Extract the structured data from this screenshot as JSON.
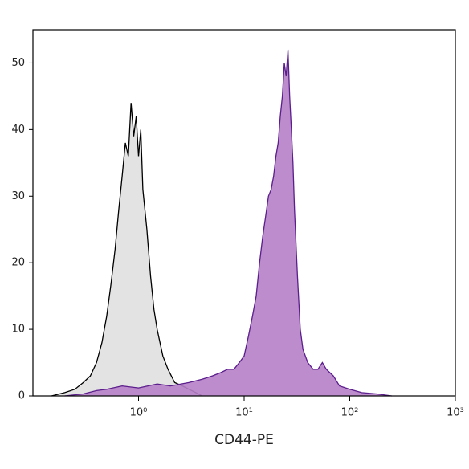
{
  "chart_data": {
    "type": "area",
    "x_label": "CD44-PE",
    "xscale": "log",
    "xlim": [
      0.1,
      1000
    ],
    "xticks": [
      {
        "value": 1,
        "label": "10⁰"
      },
      {
        "value": 10,
        "label": "10¹"
      },
      {
        "value": 100,
        "label": "10²"
      },
      {
        "value": 1000,
        "label": "10³"
      }
    ],
    "ylim": [
      0,
      55
    ],
    "yticks": [
      0,
      10,
      20,
      30,
      40,
      50
    ],
    "series": [
      {
        "color": "#000000",
        "fill": "#e0e0e0",
        "x": [
          0.15,
          0.2,
          0.25,
          0.3,
          0.35,
          0.4,
          0.45,
          0.5,
          0.55,
          0.6,
          0.65,
          0.7,
          0.75,
          0.8,
          0.85,
          0.9,
          0.95,
          1.0,
          1.05,
          1.1,
          1.2,
          1.3,
          1.4,
          1.5,
          1.7,
          1.9,
          2.2,
          2.6,
          3.0,
          3.5,
          4.0
        ],
        "values": [
          0,
          0.5,
          1,
          2,
          3,
          5,
          8,
          12,
          17,
          22,
          28,
          33,
          38,
          36,
          44,
          39,
          42,
          36,
          40,
          31,
          25,
          18,
          13,
          10,
          6,
          4,
          2,
          1.5,
          1,
          0.5,
          0
        ]
      },
      {
        "color": "#5b1e8c",
        "fill": "#b580c6",
        "x": [
          0.2,
          0.3,
          0.4,
          0.5,
          0.7,
          1.0,
          1.5,
          2,
          3,
          4,
          5,
          6,
          7,
          8,
          9,
          10,
          11,
          12,
          13,
          14,
          15,
          16,
          17,
          18,
          19,
          20,
          21,
          22,
          23,
          24,
          25,
          26,
          27,
          28,
          29,
          30,
          32,
          34,
          36,
          40,
          45,
          50,
          55,
          60,
          70,
          80,
          100,
          130,
          180,
          250
        ],
        "values": [
          0,
          0.3,
          0.8,
          1,
          1.5,
          1.2,
          1.8,
          1.5,
          2,
          2.5,
          3,
          3.5,
          4,
          4,
          5,
          6,
          9,
          12,
          15,
          20,
          24,
          27,
          30,
          31,
          33,
          36,
          38,
          42,
          45,
          50,
          48,
          52,
          45,
          40,
          35,
          28,
          18,
          10,
          7,
          5,
          4,
          4,
          5,
          4,
          3,
          1.5,
          1,
          0.5,
          0.3,
          0
        ]
      }
    ]
  }
}
